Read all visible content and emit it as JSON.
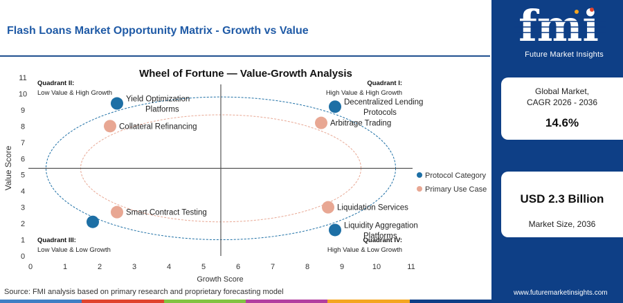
{
  "header": {
    "title": "Flash Loans Market Opportunity Matrix - Growth vs Value"
  },
  "chart_data": {
    "type": "scatter",
    "title": "Wheel of Fortune — Value-Growth Analysis",
    "xlabel": "Growth Score",
    "ylabel": "Value Score",
    "xlim": [
      0,
      11
    ],
    "ylim": [
      0,
      11
    ],
    "xticks": [
      "0",
      "1",
      "2",
      "3",
      "4",
      "5",
      "6",
      "7",
      "8",
      "9",
      "10",
      "11"
    ],
    "yticks": [
      "0",
      "1",
      "2",
      "3",
      "4",
      "5",
      "6",
      "7",
      "8",
      "9",
      "10",
      "11"
    ],
    "grid": false,
    "divider": {
      "x": 5.5,
      "y": 5.4
    },
    "quadrants": [
      {
        "id": "q2",
        "title": "Quadrant II:",
        "subtitle": "Low Value & High Growth"
      },
      {
        "id": "q1",
        "title": "Quadrant I:",
        "subtitle": "High Value & High Growth"
      },
      {
        "id": "q3",
        "title": "Quadrant III:",
        "subtitle": "Low Value & Low Growth"
      },
      {
        "id": "q4",
        "title": "Quadrant IV:",
        "subtitle": "High Value & Low Growth"
      }
    ],
    "ellipses": [
      {
        "series": "Protocol Category",
        "cx": 5.5,
        "cy": 5.4,
        "rx": 5.05,
        "ry": 4.4
      },
      {
        "series": "Primary Use Case",
        "cx": 5.5,
        "cy": 5.4,
        "rx": 4.05,
        "ry": 3.3
      }
    ],
    "legend_position": "right",
    "series": [
      {
        "name": "Protocol Category",
        "color": "#1d6fa5",
        "points": [
          {
            "label": "Yield Optimization Platforms",
            "x": 2.5,
            "y": 9.4
          },
          {
            "label": "Decentralized Lending Protocols",
            "x": 8.8,
            "y": 9.2
          },
          {
            "label": "",
            "x": 1.8,
            "y": 2.1
          },
          {
            "label": "Liquidity Aggregation Platforms",
            "x": 8.8,
            "y": 1.6
          }
        ]
      },
      {
        "name": "Primary Use Case",
        "color": "#e8a793",
        "points": [
          {
            "label": "Collateral Refinancing",
            "x": 2.3,
            "y": 8.0
          },
          {
            "label": "Arbitrage Trading",
            "x": 8.4,
            "y": 8.2
          },
          {
            "label": "Smart Contract Testing",
            "x": 2.5,
            "y": 2.7
          },
          {
            "label": "Liquidation Services",
            "x": 8.6,
            "y": 3.0
          }
        ]
      }
    ]
  },
  "panel": {
    "logo_text": "fmi",
    "logo_caption": "Future Market Insights",
    "cagr_label_1": "Global Market,",
    "cagr_label_2": "CAGR 2026 - 2036",
    "cagr_value": "14.6%",
    "size_value": "USD 2.3 Billion",
    "size_label": "Market Size, 2036",
    "url": "www.futuremarketinsights.com"
  },
  "footer": {
    "source": "Source: FMI analysis based on primary research and proprietary forecasting model"
  },
  "colors": {
    "brand_navy": "#0e3f86",
    "title_blue": "#1f5aa6",
    "bar_segments": [
      "#3f7fc4",
      "#e0442e",
      "#82c341",
      "#b23fa0",
      "#f4a620",
      "#0e3f86"
    ]
  }
}
